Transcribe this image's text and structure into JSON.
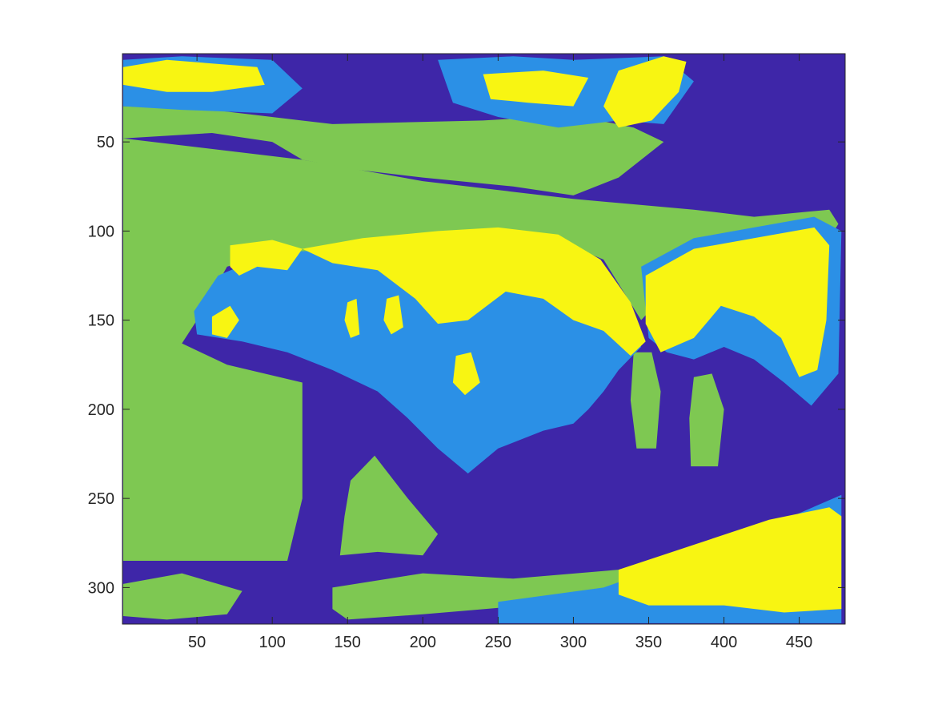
{
  "chart_data": {
    "type": "heatmap",
    "title": "",
    "xlabel": "",
    "ylabel": "",
    "xlim": [
      0.5,
      480.5
    ],
    "ylim": [
      0.5,
      320.5
    ],
    "y_direction": "reversed",
    "image_size": {
      "columns": 480,
      "rows": 320
    },
    "grid": false,
    "legend": "none",
    "x_ticks": [
      50,
      100,
      150,
      200,
      250,
      300,
      350,
      400,
      450
    ],
    "x_tick_labels": [
      "50",
      "100",
      "150",
      "200",
      "250",
      "300",
      "350",
      "400",
      "450"
    ],
    "y_ticks": [
      50,
      100,
      150,
      200,
      250,
      300
    ],
    "y_tick_labels": [
      "50",
      "100",
      "150",
      "200",
      "250",
      "300"
    ],
    "classes": [
      {
        "id": 1,
        "color": "#3e26a8"
      },
      {
        "id": 2,
        "color": "#2b90e6"
      },
      {
        "id": 3,
        "color": "#7ec852"
      },
      {
        "id": 4,
        "color": "#f8f512"
      }
    ],
    "regions_description": "Image segmented into 4 clusters showing a bear walking left; body mostly class 1, back class 4, shoulders class 2, background grass class 3"
  }
}
